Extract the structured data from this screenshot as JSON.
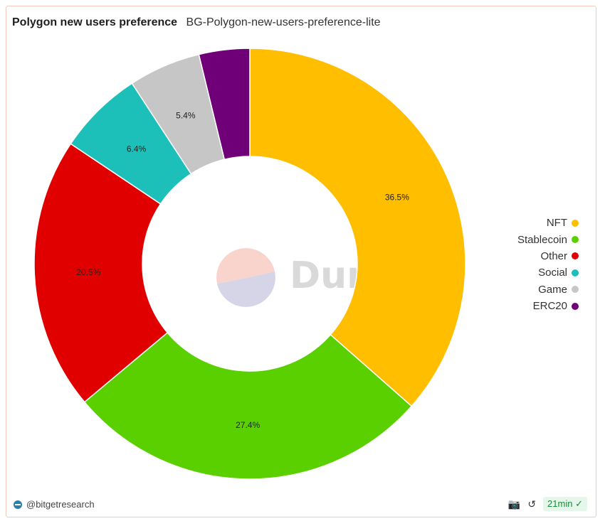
{
  "header": {
    "title": "Polygon new users preference",
    "subtitle": "BG-Polygon-new-users-preference-lite"
  },
  "footer": {
    "author": "@bitgetresearch",
    "refresh_age": "21min"
  },
  "watermark": "Dune",
  "chart_data": {
    "type": "pie",
    "donut": true,
    "slices": [
      {
        "label": "NFT",
        "value": 36.5,
        "display": "36.5%",
        "color": "#FFBE00"
      },
      {
        "label": "Stablecoin",
        "value": 27.4,
        "display": "27.4%",
        "color": "#5AD000"
      },
      {
        "label": "Other",
        "value": 20.5,
        "display": "20.5%",
        "color": "#E00000"
      },
      {
        "label": "Social",
        "value": 6.4,
        "display": "6.4%",
        "color": "#1DBFB9"
      },
      {
        "label": "Game",
        "value": 5.4,
        "display": "5.4%",
        "color": "#C6C6C6"
      },
      {
        "label": "ERC20",
        "value": 3.8,
        "display": "",
        "color": "#700078"
      }
    ],
    "legend_position": "right"
  }
}
